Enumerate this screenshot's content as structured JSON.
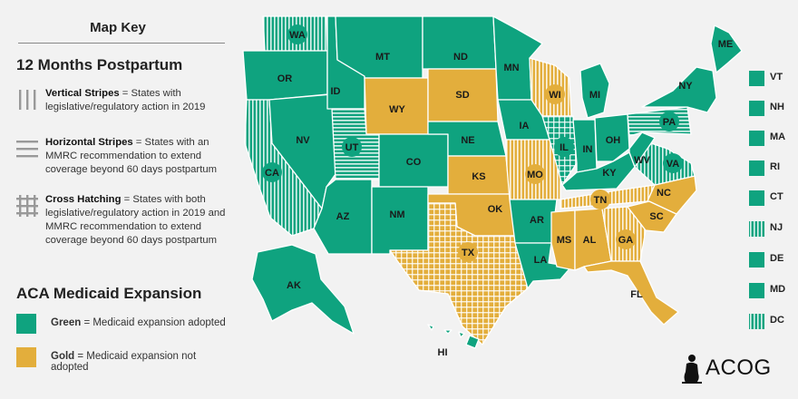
{
  "key": {
    "title": "Map Key",
    "postpartum_heading": "12 Months Postpartum",
    "items": [
      {
        "term": "Vertical Stripes",
        "desc": " = States with legislative/regulatory action in 2019"
      },
      {
        "term": "Horizontal Stripes",
        "desc": " = States with an MMRC recommendation to extend coverage beyond 60 days postpartum"
      },
      {
        "term": "Cross Hatching",
        "desc": " = States with both legislative/regulatory action in 2019 and MMRC recommendation to extend coverage beyond 60 days postpartum"
      }
    ],
    "medicaid_heading": "ACA Medicaid Expansion",
    "green_term": "Green",
    "green_desc": " = Medicaid expansion adopted",
    "gold_term": "Gold",
    "gold_desc": " = Medicaid expansion not adopted"
  },
  "colors": {
    "green": "#0fa37f",
    "gold": "#e3ae3c",
    "background": "#f2f2f2"
  },
  "states": {
    "WA": {
      "label": "WA",
      "status": "green",
      "pattern": "vertical"
    },
    "OR": {
      "label": "OR",
      "status": "green",
      "pattern": "none"
    },
    "CA": {
      "label": "CA",
      "status": "green",
      "pattern": "vertical"
    },
    "NV": {
      "label": "NV",
      "status": "green",
      "pattern": "none"
    },
    "ID": {
      "label": "ID",
      "status": "green",
      "pattern": "none"
    },
    "MT": {
      "label": "MT",
      "status": "green",
      "pattern": "none"
    },
    "WY": {
      "label": "WY",
      "status": "gold",
      "pattern": "none"
    },
    "UT": {
      "label": "UT",
      "status": "green",
      "pattern": "horizontal"
    },
    "AZ": {
      "label": "AZ",
      "status": "green",
      "pattern": "none"
    },
    "CO": {
      "label": "CO",
      "status": "green",
      "pattern": "none"
    },
    "NM": {
      "label": "NM",
      "status": "green",
      "pattern": "none"
    },
    "ND": {
      "label": "ND",
      "status": "green",
      "pattern": "none"
    },
    "SD": {
      "label": "SD",
      "status": "gold",
      "pattern": "none"
    },
    "NE": {
      "label": "NE",
      "status": "green",
      "pattern": "none"
    },
    "KS": {
      "label": "KS",
      "status": "gold",
      "pattern": "none"
    },
    "OK": {
      "label": "OK",
      "status": "gold",
      "pattern": "none"
    },
    "TX": {
      "label": "TX",
      "status": "gold",
      "pattern": "cross"
    },
    "MN": {
      "label": "MN",
      "status": "green",
      "pattern": "none"
    },
    "IA": {
      "label": "IA",
      "status": "green",
      "pattern": "none"
    },
    "MO": {
      "label": "MO",
      "status": "gold",
      "pattern": "vertical"
    },
    "AR": {
      "label": "AR",
      "status": "green",
      "pattern": "none"
    },
    "LA": {
      "label": "LA",
      "status": "green",
      "pattern": "none"
    },
    "WI": {
      "label": "WI",
      "status": "gold",
      "pattern": "vertical"
    },
    "IL": {
      "label": "IL",
      "status": "green",
      "pattern": "cross"
    },
    "MI": {
      "label": "MI",
      "status": "green",
      "pattern": "none"
    },
    "IN": {
      "label": "IN",
      "status": "green",
      "pattern": "none"
    },
    "OH": {
      "label": "OH",
      "status": "green",
      "pattern": "none"
    },
    "KY": {
      "label": "KY",
      "status": "green",
      "pattern": "none"
    },
    "TN": {
      "label": "TN",
      "status": "gold",
      "pattern": "vertical"
    },
    "MS": {
      "label": "MS",
      "status": "gold",
      "pattern": "none"
    },
    "AL": {
      "label": "AL",
      "status": "gold",
      "pattern": "none"
    },
    "GA": {
      "label": "GA",
      "status": "gold",
      "pattern": "vertical"
    },
    "FL": {
      "label": "FL",
      "status": "gold",
      "pattern": "none"
    },
    "SC": {
      "label": "SC",
      "status": "gold",
      "pattern": "none"
    },
    "NC": {
      "label": "NC",
      "status": "gold",
      "pattern": "none"
    },
    "VA": {
      "label": "VA",
      "status": "green",
      "pattern": "vertical"
    },
    "WV": {
      "label": "WV",
      "status": "green",
      "pattern": "none"
    },
    "PA": {
      "label": "PA",
      "status": "green",
      "pattern": "horizontal"
    },
    "NY": {
      "label": "NY",
      "status": "green",
      "pattern": "none"
    },
    "ME": {
      "label": "ME",
      "status": "green",
      "pattern": "none"
    },
    "AK": {
      "label": "AK",
      "status": "green",
      "pattern": "none"
    },
    "HI": {
      "label": "HI",
      "status": "green",
      "pattern": "none"
    }
  },
  "small_states": [
    {
      "label": "VT",
      "status": "green",
      "pattern": "none"
    },
    {
      "label": "NH",
      "status": "green",
      "pattern": "none"
    },
    {
      "label": "MA",
      "status": "green",
      "pattern": "none"
    },
    {
      "label": "RI",
      "status": "green",
      "pattern": "none"
    },
    {
      "label": "CT",
      "status": "green",
      "pattern": "none"
    },
    {
      "label": "NJ",
      "status": "green",
      "pattern": "vertical"
    },
    {
      "label": "DE",
      "status": "green",
      "pattern": "none"
    },
    {
      "label": "MD",
      "status": "green",
      "pattern": "none"
    },
    {
      "label": "DC",
      "status": "green",
      "pattern": "vertical"
    }
  ],
  "logo": {
    "text": "ACOG"
  }
}
